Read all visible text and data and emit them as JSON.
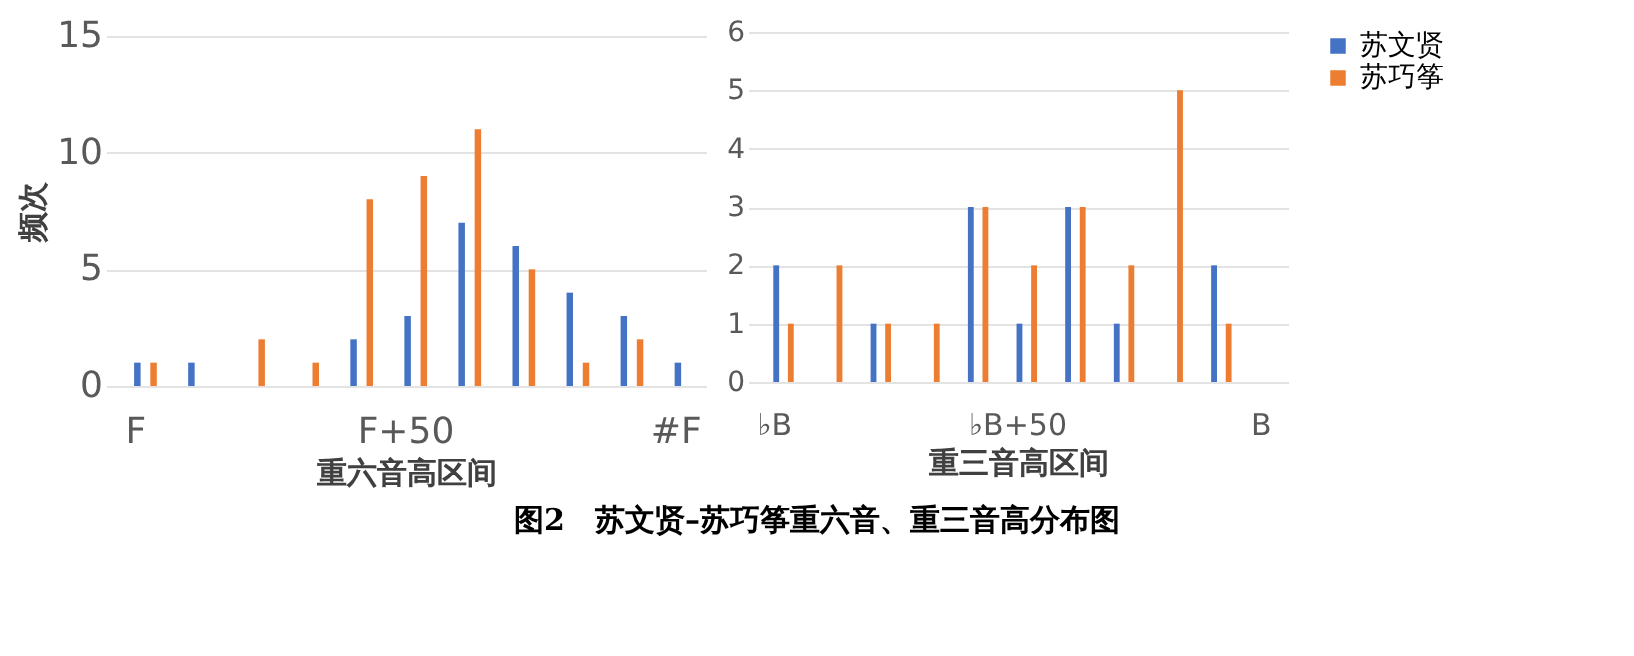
{
  "chart_data": [
    {
      "type": "bar",
      "xlabel": "重六音高区间",
      "ylabel": "频次",
      "categories": [
        "F",
        null,
        null,
        null,
        null,
        "F+50",
        null,
        null,
        null,
        null,
        "#F"
      ],
      "series": [
        {
          "color": "#4472c4",
          "values": [
            1,
            1,
            0,
            0,
            2,
            3,
            7,
            6,
            4,
            3,
            1
          ]
        },
        {
          "color": "#ed7d31",
          "values": [
            1,
            0,
            2,
            1,
            8,
            9,
            11,
            5,
            1,
            2,
            0
          ]
        }
      ],
      "ylim": [
        0,
        15
      ],
      "yticks": [
        0,
        5,
        10,
        15
      ],
      "grid": "y"
    },
    {
      "type": "bar",
      "xlabel": "重三音高区间",
      "categories": [
        "♭B",
        null,
        null,
        null,
        null,
        "♭B+50",
        null,
        null,
        null,
        null,
        "B"
      ],
      "series": [
        {
          "name": "苏文贤",
          "color": "#4472c4",
          "values": [
            2,
            0,
            1,
            0,
            3,
            1,
            3,
            1,
            0,
            2,
            0
          ]
        },
        {
          "name": "苏巧筝",
          "color": "#ed7d31",
          "values": [
            1,
            2,
            1,
            1,
            3,
            2,
            3,
            2,
            5,
            1,
            0
          ]
        }
      ],
      "ylim": [
        0,
        6
      ],
      "yticks": [
        0,
        1,
        2,
        3,
        4,
        5,
        6
      ],
      "grid": "y",
      "legend": "right",
      "annotations": [
        "图2　苏文贤–苏巧筝重六音、重三音高分布图"
      ]
    }
  ]
}
